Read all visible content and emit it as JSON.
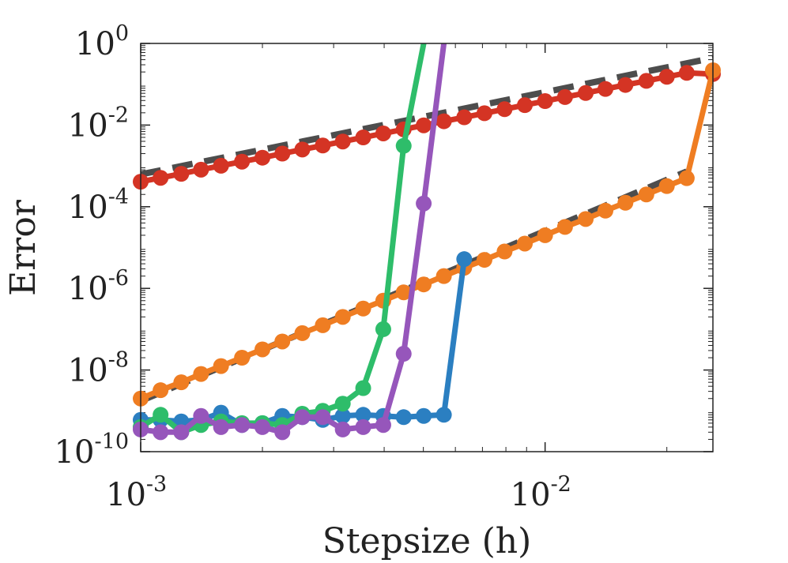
{
  "chart_data": {
    "type": "line",
    "xscale": "log",
    "yscale": "log",
    "xlabel": "Stepsize (h)",
    "ylabel": "Error",
    "xlim": [
      0.001,
      0.026
    ],
    "ylim": [
      1e-10,
      1
    ],
    "x_ticks": [
      {
        "value": 0.001,
        "base": "10",
        "exp": "-3"
      },
      {
        "value": 0.01,
        "base": "10",
        "exp": "-2"
      }
    ],
    "y_ticks": [
      {
        "value": 1,
        "base": "10",
        "exp": "0"
      },
      {
        "value": 0.01,
        "base": "10",
        "exp": "-2"
      },
      {
        "value": 0.0001,
        "base": "10",
        "exp": "-4"
      },
      {
        "value": 1e-06,
        "base": "10",
        "exp": "-6"
      },
      {
        "value": 1e-08,
        "base": "10",
        "exp": "-8"
      },
      {
        "value": 1e-10,
        "base": "10",
        "exp": "-10"
      }
    ],
    "reference_lines": [
      {
        "name": "first-order reference",
        "color": "#4d4d4d",
        "x": [
          0.001,
          0.026
        ],
        "y": [
          0.00062,
          0.44
        ]
      },
      {
        "name": "second-order reference",
        "color": "#4d4d4d",
        "x": [
          0.001,
          0.0224
        ],
        "y": [
          1.75e-09,
          0.00073
        ]
      }
    ],
    "series": [
      {
        "name": "red",
        "color": "#d43424",
        "x": [
          0.001,
          0.00112,
          0.00126,
          0.00141,
          0.00158,
          0.00178,
          0.002,
          0.00224,
          0.00251,
          0.00282,
          0.00316,
          0.00355,
          0.00398,
          0.00447,
          0.00501,
          0.00562,
          0.00631,
          0.00708,
          0.00794,
          0.00891,
          0.01,
          0.0112,
          0.0126,
          0.0141,
          0.0158,
          0.0178,
          0.02,
          0.0224,
          0.026
        ],
        "y": [
          0.00041,
          0.00051,
          0.00064,
          0.00081,
          0.00101,
          0.00127,
          0.00159,
          0.002,
          0.00252,
          0.00316,
          0.00396,
          0.00498,
          0.00625,
          0.00785,
          0.00986,
          0.0124,
          0.0155,
          0.0195,
          0.0245,
          0.0308,
          0.0387,
          0.0486,
          0.061,
          0.0766,
          0.0962,
          0.121,
          0.152,
          0.19,
          0.178
        ]
      },
      {
        "name": "orange",
        "color": "#ef7d22",
        "x": [
          0.001,
          0.00112,
          0.00126,
          0.00141,
          0.00158,
          0.00178,
          0.002,
          0.00224,
          0.00251,
          0.00282,
          0.00316,
          0.00355,
          0.00398,
          0.00447,
          0.00501,
          0.00562,
          0.00631,
          0.00708,
          0.00794,
          0.00891,
          0.01,
          0.0112,
          0.0126,
          0.0141,
          0.0158,
          0.0178,
          0.02,
          0.0224,
          0.026
        ],
        "y": [
          2e-09,
          3.2e-09,
          5e-09,
          8e-09,
          1.25e-08,
          2e-08,
          3.2e-08,
          5e-08,
          8e-08,
          1.25e-07,
          2e-07,
          3.2e-07,
          5e-07,
          8e-07,
          1.25e-06,
          2e-06,
          3.2e-06,
          5e-06,
          8e-06,
          1.25e-05,
          2e-05,
          3.2e-05,
          5e-05,
          8e-05,
          0.000125,
          0.0002,
          0.00032,
          0.0005,
          0.22
        ]
      },
      {
        "name": "blue",
        "color": "#2b7fc1",
        "x": [
          0.001,
          0.00112,
          0.00126,
          0.00141,
          0.00158,
          0.00178,
          0.002,
          0.00224,
          0.00251,
          0.00282,
          0.00316,
          0.00355,
          0.00398,
          0.00447,
          0.00501,
          0.00562,
          0.00631
        ],
        "y": [
          6e-10,
          6e-10,
          5.5e-10,
          6e-10,
          9e-10,
          4.5e-10,
          5e-10,
          7.5e-10,
          7e-10,
          6e-10,
          7.5e-10,
          8e-10,
          7.5e-10,
          7e-10,
          7.5e-10,
          8e-10,
          5.2e-06
        ]
      },
      {
        "name": "green",
        "color": "#2ebd6a",
        "x": [
          0.001,
          0.00112,
          0.00126,
          0.00141,
          0.00158,
          0.00178,
          0.002,
          0.00224,
          0.00251,
          0.00282,
          0.00316,
          0.00355,
          0.00398,
          0.00447,
          0.00501
        ],
        "y": [
          4e-10,
          8e-10,
          3e-10,
          4.5e-10,
          5.5e-10,
          5e-10,
          5e-10,
          4.5e-10,
          8.5e-10,
          1e-09,
          1.5e-09,
          3.6e-09,
          1e-07,
          0.0031,
          1
        ]
      },
      {
        "name": "purple",
        "color": "#9656bb",
        "x": [
          0.001,
          0.00112,
          0.00126,
          0.00141,
          0.00158,
          0.00178,
          0.002,
          0.00224,
          0.00251,
          0.00282,
          0.00316,
          0.00355,
          0.00398,
          0.00447,
          0.00501,
          0.00562
        ],
        "y": [
          3.5e-10,
          3e-10,
          3e-10,
          7.5e-10,
          4e-10,
          4.5e-10,
          4e-10,
          3e-10,
          7e-10,
          7e-10,
          3.5e-10,
          4e-10,
          4.5e-10,
          2.5e-08,
          0.00012,
          1
        ]
      }
    ]
  }
}
